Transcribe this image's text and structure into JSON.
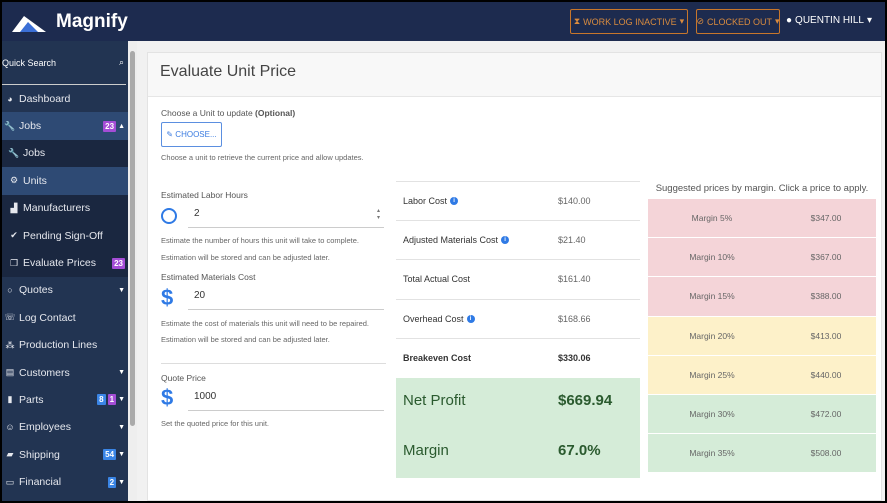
{
  "header": {
    "brand": "Magnify",
    "work_log": "WORK LOG INACTIVE",
    "clocked": "CLOCKED OUT",
    "user": "QUENTIN HILL"
  },
  "sidebar": {
    "search": "Quick Search",
    "items": [
      {
        "label": "Dashboard",
        "icon": "dashboard-icon",
        "glyph": "◕"
      },
      {
        "label": "Jobs",
        "icon": "wrench-icon",
        "glyph": "🔧",
        "badges": [
          {
            "text": "23",
            "color": "purple"
          }
        ],
        "caret": "▲"
      },
      {
        "label": "Jobs",
        "icon": "wrench-icon",
        "glyph": "🔧",
        "sub": true
      },
      {
        "label": "Units",
        "icon": "cogs-icon",
        "glyph": "⚙",
        "sub": true,
        "active": true
      },
      {
        "label": "Manufacturers",
        "icon": "industry-icon",
        "glyph": "▟",
        "sub": true
      },
      {
        "label": "Pending Sign-Off",
        "icon": "check-icon",
        "glyph": "✔",
        "sub": true
      },
      {
        "label": "Evaluate Prices",
        "icon": "copy-icon",
        "glyph": "❐",
        "sub": true,
        "badges": [
          {
            "text": "23",
            "color": "purple"
          }
        ]
      },
      {
        "label": "Quotes",
        "icon": "comment-icon",
        "glyph": "○",
        "caret": "▼"
      },
      {
        "label": "Log Contact",
        "icon": "phone-icon",
        "glyph": "☏"
      },
      {
        "label": "Production Lines",
        "icon": "cubes-icon",
        "glyph": "⁂"
      },
      {
        "label": "Customers",
        "icon": "building-icon",
        "glyph": "▤",
        "caret": "▼"
      },
      {
        "label": "Parts",
        "icon": "hdd-icon",
        "glyph": "▮",
        "badges": [
          {
            "text": "8",
            "color": "blue"
          },
          {
            "text": "1",
            "color": "purple"
          }
        ],
        "caret": "▼"
      },
      {
        "label": "Employees",
        "icon": "users-icon",
        "glyph": "☺",
        "caret": "▼"
      },
      {
        "label": "Shipping",
        "icon": "truck-icon",
        "glyph": "▰",
        "badges": [
          {
            "text": "54",
            "color": "blue"
          }
        ],
        "caret": "▼"
      },
      {
        "label": "Financial",
        "icon": "credit-card-icon",
        "glyph": "▭",
        "badges": [
          {
            "text": "2",
            "color": "blue"
          }
        ],
        "caret": "▼"
      }
    ]
  },
  "page": {
    "title": "Evaluate Unit Price",
    "choose_label": "Choose a Unit to update ",
    "optional": "(Optional)",
    "choose_button": "✎ CHOOSE...",
    "choose_hint": "Choose a unit to retrieve the current price and allow updates.",
    "labor_label": "Estimated Labor Hours",
    "labor_value": "2",
    "labor_hint1": "Estimate the number of hours this unit will take to complete.",
    "labor_hint2": "Estimation will be stored and can be adjusted later.",
    "mat_label": "Estimated Materials Cost",
    "mat_value": "20",
    "mat_hint1": "Estimate the cost of materials this unit will need to be repaired.",
    "mat_hint2": "Estimation will be stored and can be adjusted later.",
    "quote_label": "Quote Price",
    "quote_value": "1000",
    "quote_hint": "Set the quoted price for this unit.",
    "currency_symbol": "$"
  },
  "costs": [
    {
      "label": "Labor Cost",
      "value": "$140.00",
      "info": true
    },
    {
      "label": "Adjusted Materials Cost",
      "value": "$21.40",
      "info": true
    },
    {
      "label": "Total Actual Cost",
      "value": "$161.40"
    },
    {
      "label": "Overhead Cost",
      "value": "$168.66",
      "info": true
    },
    {
      "label": "Breakeven Cost",
      "value": "$330.06",
      "bold": true
    }
  ],
  "profit": {
    "net_label": "Net Profit",
    "net_value": "$669.94",
    "margin_label": "Margin",
    "margin_value": "67.0%"
  },
  "suggested": {
    "title": "Suggested prices by margin. Click a price to apply.",
    "rows": [
      {
        "margin": "Margin 5%",
        "price": "$347.00",
        "color": "#f4d4d8"
      },
      {
        "margin": "Margin 10%",
        "price": "$367.00",
        "color": "#f4d4d8"
      },
      {
        "margin": "Margin 15%",
        "price": "$388.00",
        "color": "#f4d4d8"
      },
      {
        "margin": "Margin 20%",
        "price": "$413.00",
        "color": "#fdf1c9"
      },
      {
        "margin": "Margin 25%",
        "price": "$440.00",
        "color": "#fdf1c9"
      },
      {
        "margin": "Margin 30%",
        "price": "$472.00",
        "color": "#d5ecd8"
      },
      {
        "margin": "Margin 35%",
        "price": "$508.00",
        "color": "#d5ecd8"
      }
    ]
  }
}
